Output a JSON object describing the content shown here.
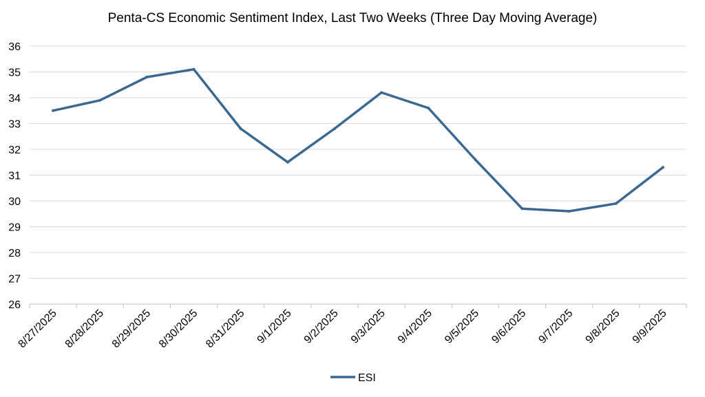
{
  "chart_data": {
    "type": "line",
    "title": "Penta-CS Economic Sentiment Index, Last Two Weeks (Three Day Moving Average)",
    "xlabel": "",
    "ylabel": "",
    "categories": [
      "8/27/2025",
      "8/28/2025",
      "8/29/2025",
      "8/30/2025",
      "8/31/2025",
      "9/1/2025",
      "9/2/2025",
      "9/3/2025",
      "9/4/2025",
      "9/5/2025",
      "9/6/2025",
      "9/7/2025",
      "9/8/2025",
      "9/9/2025"
    ],
    "series": [
      {
        "name": "ESI",
        "color": "#3a6891",
        "values": [
          33.5,
          33.9,
          34.8,
          35.1,
          32.8,
          31.5,
          32.8,
          34.2,
          33.6,
          31.6,
          29.7,
          29.6,
          29.9,
          31.3
        ]
      }
    ],
    "ylim": [
      26,
      36
    ],
    "yticks": [
      26,
      27,
      28,
      29,
      30,
      31,
      32,
      33,
      34,
      35,
      36
    ],
    "grid": true,
    "legend_position": "bottom"
  }
}
